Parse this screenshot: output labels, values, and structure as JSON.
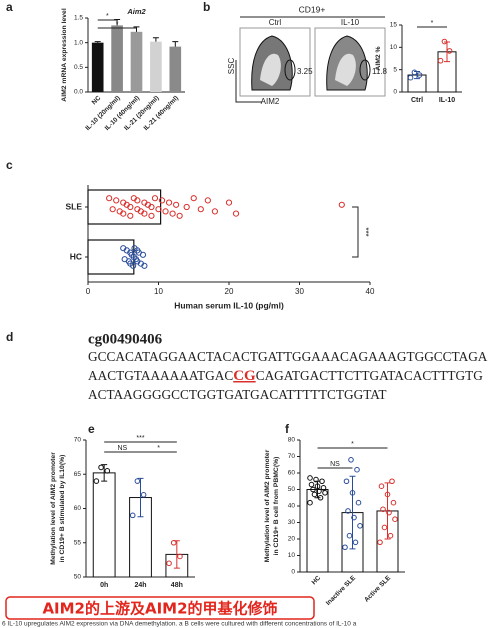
{
  "panel_letters": [
    "a",
    "b",
    "c",
    "d",
    "e",
    "f"
  ],
  "chart_data": [
    {
      "type": "bar",
      "bar_style": "filled",
      "title": "Aim2",
      "ylabel": [
        "AIM2 mRNA expression level"
      ],
      "categories": [
        "NC",
        "IL-10 (20ng/ml)",
        "IL-10 (40ng/ml)",
        "IL-21 (20ng/ml)",
        "IL-21 (40ng/ml)"
      ],
      "values": [
        1.0,
        1.35,
        1.22,
        1.02,
        0.92
      ],
      "errors": [
        0.02,
        0.12,
        0.1,
        0.08,
        0.1
      ],
      "colors": [
        "#111111",
        "#888888",
        "#9a9a9a",
        "#d2d2d2",
        "#8a8a8a"
      ],
      "ylim": [
        0,
        1.5
      ],
      "yticks": [
        {
          "value": 0,
          "label": "0.0"
        },
        {
          "value": 0.5,
          "label": "0.5"
        },
        {
          "value": 1,
          "label": "1.0"
        },
        {
          "value": 1.5,
          "label": "1.5"
        }
      ],
      "annotations": [
        "*",
        "*"
      ]
    },
    {
      "type": "bar",
      "bar_style": "outline",
      "ylabel": [
        "AIM2 %"
      ],
      "categories": [
        "Ctrl",
        "IL-10"
      ],
      "values": [
        3.8,
        9.0
      ],
      "errors": [
        0.8,
        2.2
      ],
      "colors": [
        "#2a4d9b",
        "#d9302c"
      ],
      "points": [
        [
          3.2,
          3.8,
          4.4
        ],
        [
          7.0,
          9.2,
          11.3
        ]
      ],
      "ylim": [
        0,
        15
      ],
      "yticks": [
        0,
        5,
        10,
        15
      ],
      "annotations": [
        "*"
      ]
    },
    {
      "type": "strip",
      "categories": [
        "SLE",
        "HC"
      ],
      "values": [
        10.3,
        6.5
      ],
      "colors": [
        "#d9302c",
        "#2a4d9b"
      ],
      "points": [
        [
          3,
          3.5,
          4,
          4.5,
          5,
          5,
          5.5,
          6,
          6,
          6.5,
          7,
          7,
          7.5,
          8,
          8,
          8.5,
          9,
          9,
          9.5,
          10,
          10.5,
          11,
          11.5,
          12,
          12.5,
          13,
          14,
          15,
          16,
          17,
          18,
          20,
          21,
          36
        ],
        [
          5,
          5.2,
          5.5,
          5.8,
          6,
          6,
          6.2,
          6.4,
          6.5,
          6.6,
          6.8,
          7,
          7,
          7.2,
          7.5,
          7.8,
          8
        ]
      ],
      "xlabel": "Human serum IL-10 (pg/ml)",
      "xlim": [
        0,
        40
      ],
      "xticks": [
        0,
        10,
        20,
        30,
        40
      ],
      "annotations": [
        "***"
      ]
    },
    {
      "type": "bar",
      "bar_style": "outline",
      "ylabel": [
        "Methylation level of AIM2 promoter",
        "in CD19+ B stimulated by IL10(%)"
      ],
      "categories": [
        "0h",
        "24h",
        "48h"
      ],
      "values": [
        65.2,
        61.6,
        53.3
      ],
      "errors": [
        1.2,
        2.8,
        2.0
      ],
      "colors": [
        "#111111",
        "#2a4d9b",
        "#d9302c"
      ],
      "points": [
        [
          64,
          65.5,
          66
        ],
        [
          59,
          62,
          64
        ],
        [
          52,
          53,
          55
        ]
      ],
      "ylim": [
        50,
        70
      ],
      "yticks": [
        50,
        55,
        60,
        65,
        70
      ],
      "annotations": [
        "NS",
        "***",
        "*"
      ]
    },
    {
      "type": "bar",
      "bar_style": "outline",
      "ylabel": [
        "Methylation level of AIM2 promoter",
        "in CD19+ B cell from PBMC(%)"
      ],
      "categories": [
        "HC",
        "Inactive SLE",
        "Active SLE"
      ],
      "values": [
        50,
        36,
        37
      ],
      "errors": [
        5,
        22,
        17
      ],
      "colors": [
        "#111111",
        "#2a4d9b",
        "#d9302c"
      ],
      "points": [
        [
          42,
          45,
          47,
          48,
          49,
          50,
          51,
          52,
          53,
          55,
          56,
          57
        ],
        [
          15,
          18,
          22,
          28,
          33,
          37,
          42,
          48,
          55,
          62,
          68
        ],
        [
          18,
          22,
          27,
          32,
          36,
          38,
          42,
          47,
          52,
          55
        ]
      ],
      "ylim": [
        0,
        80
      ],
      "yticks": [
        0,
        10,
        20,
        30,
        40,
        50,
        60,
        70,
        80
      ],
      "annotations": [
        "NS",
        "*"
      ]
    }
  ],
  "flow": {
    "title": "CD19+",
    "panels": [
      "Ctrl",
      "IL-10"
    ],
    "gate_values": [
      3.25,
      11.8
    ],
    "ylabel": "SSC",
    "xlabel": "AIM2"
  },
  "sequence": {
    "id": "cg00490406",
    "lines": [
      [
        "GCCACATAGGAACTACACTGATTGGAAACAGAAAGTGGCCTAGA"
      ],
      [
        "AACTGTAAAAAATGAC",
        "CG",
        "CAGATGACTTCTTGATACACTTTGTG"
      ],
      [
        "ACTAAGGGGCCTGGTGATGACATTTTTCTGGTAT"
      ]
    ]
  },
  "banner": "AIM2的上游及AIM2的甲基化修饰",
  "caption": "6   IL-10 upregulates AIM2 expression via DNA demethylation. a B cells were cultured with different concentrations of IL-10 a"
}
